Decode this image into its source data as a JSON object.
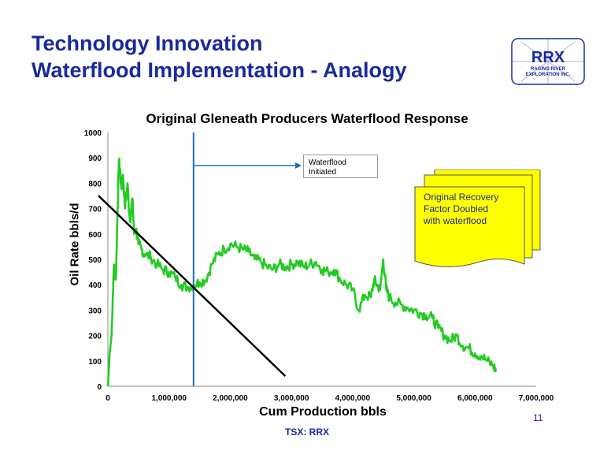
{
  "slide": {
    "title_line1": "Technology Innovation",
    "title_line2": "Waterflood Implementation - Analogy",
    "page_number": "11",
    "footer": "TSX: RRX"
  },
  "logo": {
    "text": "RRX",
    "subtitle_line1": "RAGING RIVER",
    "subtitle_line2": "EXPLORATION INC."
  },
  "colors": {
    "title": "#1a2a9a",
    "series": "#22cc22",
    "waterflood_line": "#1e6fc0",
    "decline_line": "#000000",
    "note_fill": "#ffff00"
  },
  "annotations": {
    "waterflood": [
      "Waterflood",
      "Initiated"
    ],
    "recovery_note": [
      "Original Recovery",
      "Factor Doubled",
      "with waterflood"
    ]
  },
  "chart_data": {
    "type": "line",
    "title": "Original Gleneath Producers Waterflood Response",
    "xlabel": "Cum Production bbls",
    "ylabel": "Oil Rate bbls/d",
    "xlim": [
      0,
      7000000
    ],
    "ylim": [
      0,
      1000
    ],
    "x_ticks": [
      "0",
      "1,000,000",
      "2,000,000",
      "3,000,000",
      "4,000,000",
      "5,000,000",
      "6,000,000",
      "7,000,000"
    ],
    "y_ticks": [
      "0",
      "100",
      "200",
      "300",
      "400",
      "500",
      "600",
      "700",
      "800",
      "900",
      "1000"
    ],
    "grid": false,
    "series": [
      {
        "x": [
          0,
          30000,
          60000,
          80000,
          100000,
          130000,
          160000,
          180000,
          200000,
          220000,
          250000,
          280000,
          320000,
          360000,
          400000,
          430000,
          460000,
          500000,
          550000,
          600000,
          700000,
          800000,
          900000,
          1000000,
          1100000,
          1200000,
          1300000,
          1400000,
          1500000,
          1600000,
          1700000,
          1800000,
          1900000,
          2000000,
          2100000,
          2200000,
          2300000,
          2400000,
          2500000,
          2600000,
          2700000,
          2800000,
          2900000,
          3000000,
          3100000,
          3200000,
          3300000,
          3400000,
          3500000,
          3600000,
          3700000,
          3800000,
          3900000,
          4000000,
          4100000,
          4200000,
          4300000,
          4350000,
          4400000,
          4450000,
          4500000,
          4550000,
          4600000,
          4700000,
          4800000,
          4900000,
          5000000,
          5100000,
          5200000,
          5300000,
          5400000,
          5500000,
          5600000,
          5700000,
          5800000,
          5900000,
          6000000,
          6100000,
          6200000,
          6300000,
          6350000
        ],
        "y": [
          0,
          130,
          200,
          350,
          480,
          420,
          700,
          890,
          850,
          780,
          830,
          700,
          800,
          650,
          740,
          600,
          620,
          560,
          540,
          520,
          510,
          480,
          460,
          450,
          430,
          400,
          390,
          400,
          410,
          420,
          480,
          520,
          540,
          560,
          550,
          540,
          530,
          500,
          490,
          470,
          460,
          480,
          470,
          480,
          490,
          470,
          480,
          490,
          460,
          450,
          460,
          420,
          400,
          380,
          300,
          360,
          350,
          420,
          400,
          380,
          500,
          380,
          350,
          330,
          320,
          310,
          300,
          290,
          280,
          270,
          230,
          200,
          180,
          200,
          160,
          150,
          130,
          120,
          100,
          80,
          60
        ]
      }
    ],
    "reference_lines": {
      "waterflood_start_x": 1400000,
      "decline_trend": {
        "x": [
          0,
          2900000
        ],
        "y": [
          720,
          40
        ]
      }
    }
  }
}
